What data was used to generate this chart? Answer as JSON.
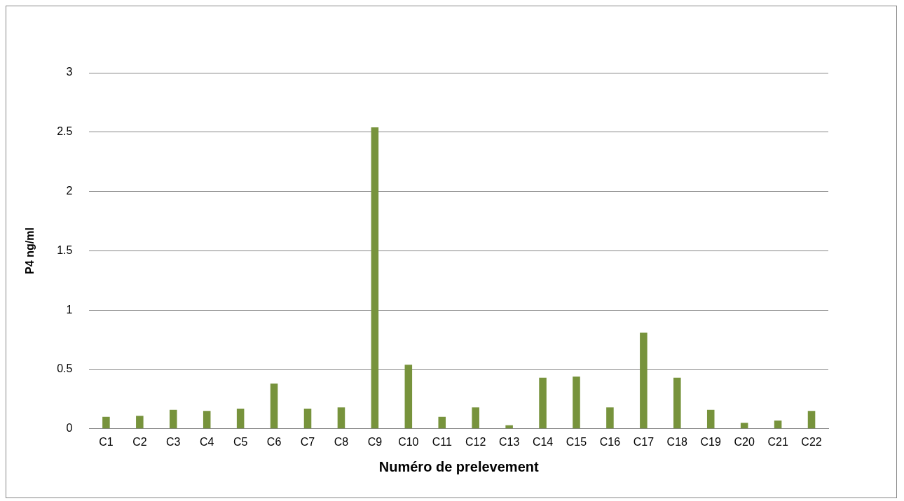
{
  "chart_data": {
    "type": "bar",
    "xlabel": "Numéro de prelevement",
    "ylabel": "P4 ng/ml",
    "categories": [
      "C1",
      "C2",
      "C3",
      "C4",
      "C5",
      "C6",
      "C7",
      "C8",
      "C9",
      "C10",
      "C11",
      "C12",
      "C13",
      "C14",
      "C15",
      "C16",
      "C17",
      "C18",
      "C19",
      "C20",
      "C21",
      "C22"
    ],
    "values": [
      0.1,
      0.11,
      0.16,
      0.15,
      0.17,
      0.38,
      0.17,
      0.18,
      2.54,
      0.54,
      0.1,
      0.18,
      0.03,
      0.43,
      0.44,
      0.18,
      0.81,
      0.43,
      0.16,
      0.05,
      0.07,
      0.15
    ],
    "color": "#77933c",
    "ylim": [
      0,
      3
    ],
    "yticks": [
      0,
      0.5,
      1,
      1.5,
      2,
      2.5,
      3
    ],
    "grid": "y",
    "legend": false
  }
}
